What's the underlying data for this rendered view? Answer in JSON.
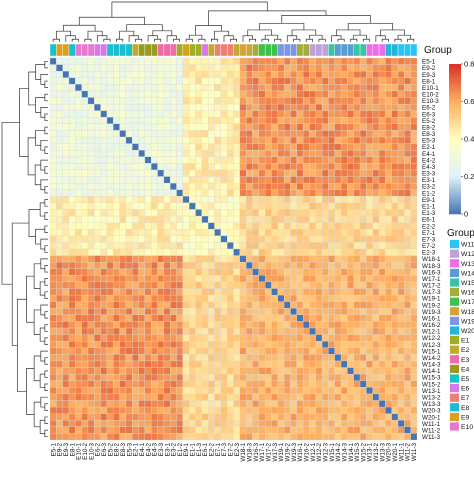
{
  "chart_data": {
    "type": "heatmap",
    "title": "",
    "row_labels": [
      "E5-1",
      "E9-2",
      "E9-3",
      "E8-1",
      "E10-1",
      "E10-2",
      "E10-3",
      "E6-2",
      "E6-3",
      "E5-2",
      "E8-2",
      "E8-3",
      "E5-3",
      "E2-1",
      "E4-1",
      "E4-2",
      "E4-3",
      "E3-3",
      "E3-1",
      "E3-2",
      "E1-2",
      "E9-1",
      "E1-1",
      "E1-3",
      "E6-1",
      "E2-2",
      "E7-1",
      "E7-3",
      "E7-2",
      "E2-3",
      "W18-1",
      "W18-3",
      "W16-3",
      "W17-1",
      "W17-2",
      "W17-3",
      "W19-1",
      "W19-2",
      "W19-3",
      "W16-1",
      "W16-2",
      "W12-1",
      "W12-2",
      "W12-3",
      "W15-1",
      "W14-2",
      "W14-3",
      "W14-1",
      "W15-3",
      "W15-2",
      "W13-1",
      "W13-2",
      "W13-3",
      "W20-3",
      "W20-1",
      "W11-1",
      "W11-2",
      "W11-3"
    ],
    "col_labels": [
      "E5-1",
      "E9-2",
      "E9-3",
      "E8-1",
      "E10-1",
      "E10-2",
      "E10-3",
      "E6-2",
      "E6-3",
      "E5-2",
      "E8-2",
      "E8-3",
      "E5-3",
      "E2-1",
      "E4-1",
      "E4-2",
      "E4-3",
      "E3-3",
      "E3-1",
      "E3-2",
      "E1-2",
      "E9-1",
      "E1-1",
      "E1-3",
      "E6-1",
      "E2-2",
      "E7-1",
      "E7-3",
      "E7-2",
      "E2-3",
      "W18-1",
      "W18-3",
      "W16-3",
      "W17-1",
      "W17-2",
      "W17-3",
      "W19-1",
      "W19-2",
      "W19-3",
      "W16-1",
      "W16-2",
      "W12-1",
      "W12-2",
      "W12-3",
      "W15-1",
      "W14-2",
      "W14-3",
      "W14-1",
      "W15-3",
      "W15-2",
      "W13-1",
      "W13-2",
      "W13-3",
      "W20-3",
      "W20-1",
      "W11-1",
      "W11-2",
      "W11-3"
    ],
    "cluster_sizes": [
      21,
      9,
      28
    ],
    "block_levels": [
      [
        0.3,
        0.44,
        0.64
      ],
      [
        0.44,
        0.4,
        0.5
      ],
      [
        0.64,
        0.5,
        0.58
      ]
    ],
    "diagonal_value": 0.0,
    "color_scale": {
      "range": [
        0,
        0.8
      ],
      "ticks": [
        0,
        0.2,
        0.4,
        0.6,
        0.8
      ],
      "colors": [
        "#4575b4",
        "#e0f3f8",
        "#ffffbf",
        "#fdae61",
        "#d73027"
      ]
    },
    "annotation_title": "Group",
    "legend": {
      "title": "Group",
      "entries": [
        {
          "label": "W11",
          "color": "#29c5f6"
        },
        {
          "label": "W12",
          "color": "#bfa2d9"
        },
        {
          "label": "W13",
          "color": "#ee6ee6"
        },
        {
          "label": "W14",
          "color": "#5b9bd5"
        },
        {
          "label": "W15",
          "color": "#39c4a0"
        },
        {
          "label": "W16",
          "color": "#a5ad3a"
        },
        {
          "label": "W17",
          "color": "#3cc14b"
        },
        {
          "label": "W18",
          "color": "#d1a43b"
        },
        {
          "label": "W19",
          "color": "#7d95e6"
        },
        {
          "label": "W20",
          "color": "#1fb8d8"
        },
        {
          "label": "E1",
          "color": "#9fae24"
        },
        {
          "label": "E2",
          "color": "#c0ab2e"
        },
        {
          "label": "E3",
          "color": "#f06aa5"
        },
        {
          "label": "E4",
          "color": "#9a9a20"
        },
        {
          "label": "E5",
          "color": "#14c3c9"
        },
        {
          "label": "E6",
          "color": "#d978e8"
        },
        {
          "label": "E7",
          "color": "#f07f73"
        },
        {
          "label": "E8",
          "color": "#1bbcd4"
        },
        {
          "label": "E9",
          "color": "#d8a21a"
        },
        {
          "label": "E10",
          "color": "#e778d2"
        }
      ]
    }
  }
}
